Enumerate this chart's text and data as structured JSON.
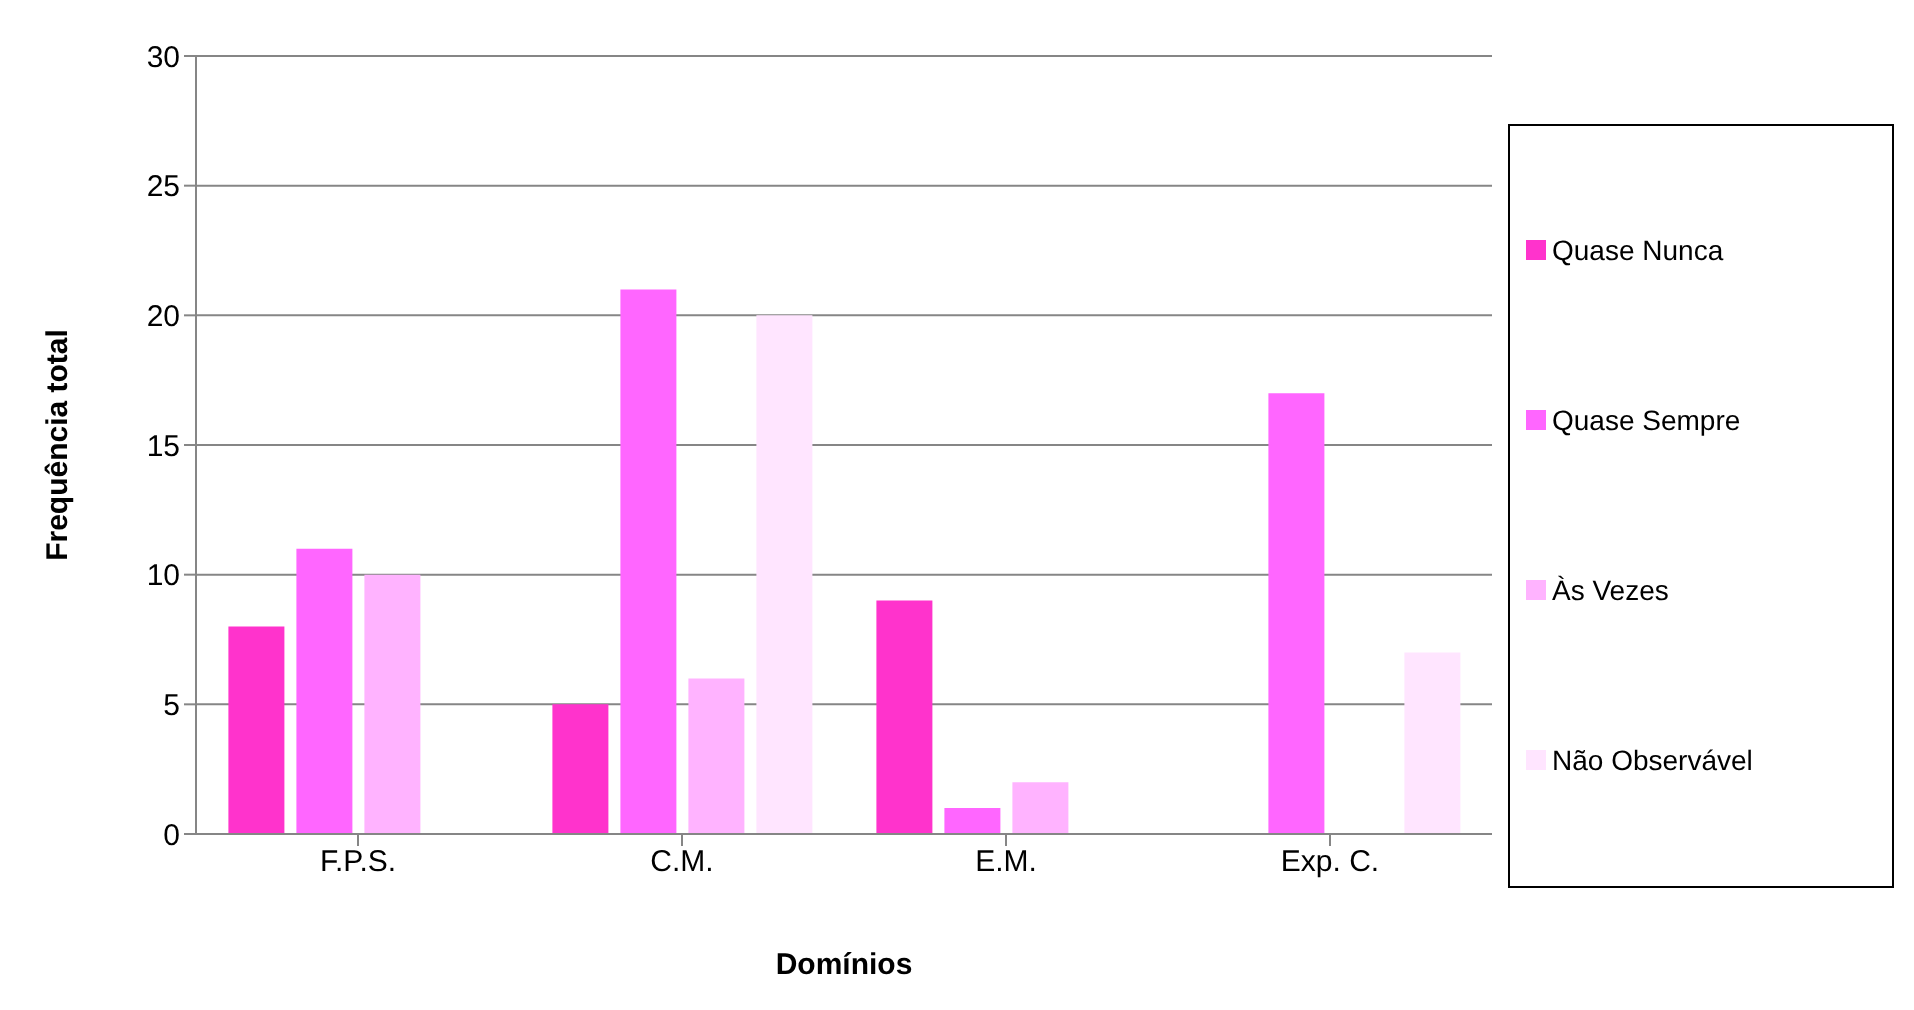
{
  "chart_data": {
    "type": "bar",
    "xlabel": "Domínios",
    "ylabel": "Frequência total",
    "categories": [
      "F.P.S.",
      "C.M.",
      "E.M.",
      "Exp. C."
    ],
    "series": [
      {
        "name": "Quase Nunca",
        "color": "#ff33cc",
        "values": [
          8,
          5,
          9,
          null
        ]
      },
      {
        "name": "Quase Sempre",
        "color": "#ff66ff",
        "values": [
          11,
          21,
          1,
          17
        ]
      },
      {
        "name": "Às Vezes",
        "color": "#ffb3ff",
        "values": [
          10,
          6,
          2,
          null
        ]
      },
      {
        "name": "Não Observável",
        "color": "#ffe5ff",
        "values": [
          null,
          20,
          null,
          7
        ]
      }
    ],
    "ylim": [
      0,
      30
    ],
    "yticks": [
      0,
      5,
      10,
      15,
      20,
      25,
      30
    ],
    "grid": "y",
    "legend": "right"
  }
}
